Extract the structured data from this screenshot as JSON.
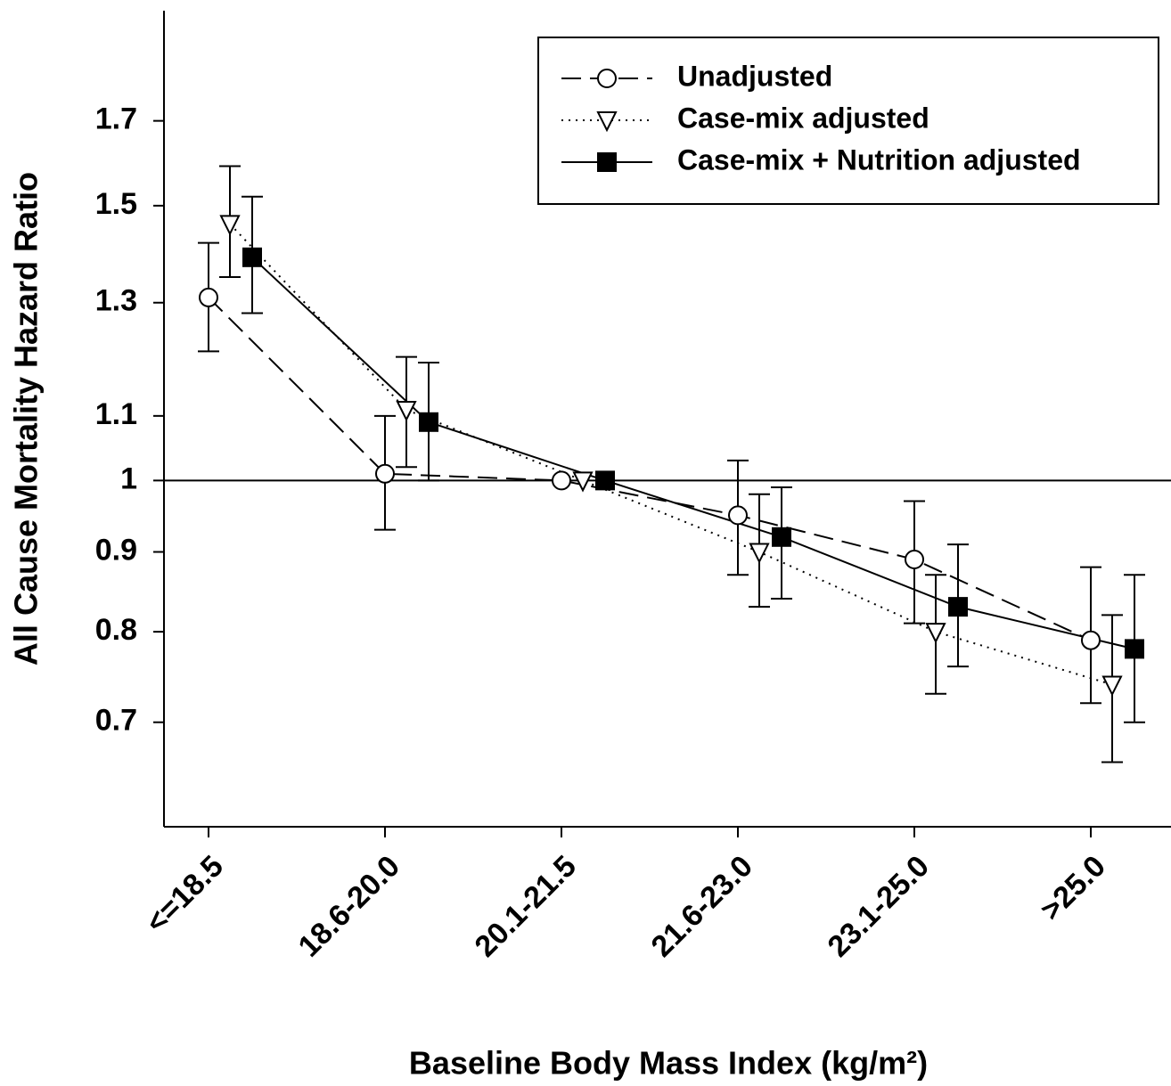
{
  "chart_data": {
    "type": "line",
    "y_label": "All Cause Mortality Hazard Ratio",
    "x_label": "Baseline Body Mass Index (kg/m²)",
    "categories": [
      "<=18.5",
      "18.6-20.0",
      "20.1-21.5",
      "21.6-23.0",
      "23.1-25.0",
      ">25.0"
    ],
    "series": [
      {
        "name": "Unadjusted",
        "color": "#000000",
        "dash": "dashed",
        "marker": "circle",
        "marker_fill": "#ffffff",
        "values": [
          1.31,
          1.01,
          1.0,
          0.95,
          0.89,
          0.79
        ],
        "ci_lower": [
          1.21,
          0.93,
          null,
          0.87,
          0.81,
          0.72
        ],
        "ci_upper": [
          1.42,
          1.1,
          null,
          1.03,
          0.97,
          0.88
        ]
      },
      {
        "name": "Case-mix adjusted",
        "color": "#000000",
        "dash": "dotted",
        "marker": "triangle",
        "marker_fill": "#ffffff",
        "values": [
          1.46,
          1.11,
          1.0,
          0.9,
          0.8,
          0.74
        ],
        "ci_lower": [
          1.35,
          1.02,
          null,
          0.83,
          0.73,
          0.66
        ],
        "ci_upper": [
          1.59,
          1.2,
          null,
          0.98,
          0.87,
          0.82
        ]
      },
      {
        "name": "Case-mix + Nutrition adjusted",
        "color": "#000000",
        "dash": "solid",
        "marker": "square",
        "marker_fill": "#000000",
        "values": [
          1.39,
          1.09,
          1.0,
          0.92,
          0.83,
          0.78
        ],
        "ci_lower": [
          1.28,
          1.0,
          null,
          0.84,
          0.76,
          0.7
        ],
        "ci_upper": [
          1.52,
          1.19,
          null,
          0.99,
          0.91,
          0.87
        ]
      }
    ],
    "ylim": [
      0.6,
      2.0
    ],
    "y_scale": "log",
    "yticks": [
      0.7,
      0.8,
      0.9,
      1,
      1.1,
      1.3,
      1.5,
      1.7
    ],
    "reference_line": 1,
    "legend": "upper right"
  }
}
